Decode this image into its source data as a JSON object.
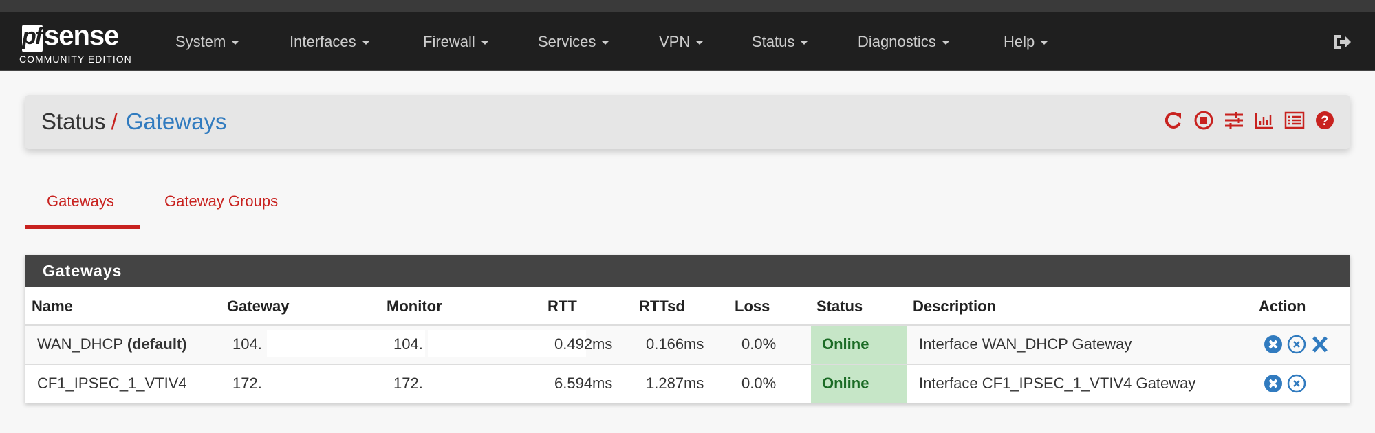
{
  "brand": {
    "logo_pf": "pf",
    "logo_sense": "sense",
    "edition": "COMMUNITY EDITION"
  },
  "nav": {
    "items": [
      {
        "label": "System"
      },
      {
        "label": "Interfaces"
      },
      {
        "label": "Firewall"
      },
      {
        "label": "Services"
      },
      {
        "label": "VPN"
      },
      {
        "label": "Status"
      },
      {
        "label": "Diagnostics"
      },
      {
        "label": "Help"
      }
    ],
    "logout_icon": "sign-out-icon"
  },
  "breadcrumb": {
    "parent": "Status",
    "separator": "/",
    "current": "Gateways",
    "icons": [
      "reload-icon",
      "stop-circle-icon",
      "sliders-icon",
      "bar-chart-icon",
      "list-icon",
      "help-icon"
    ]
  },
  "tabs": [
    {
      "label": "Gateways",
      "active": true
    },
    {
      "label": "Gateway Groups",
      "active": false
    }
  ],
  "panel": {
    "title": "Gateways",
    "columns": [
      "Name",
      "Gateway",
      "Monitor",
      "RTT",
      "RTTsd",
      "Loss",
      "Status",
      "Description",
      "Action"
    ],
    "rows": [
      {
        "name": "WAN_DHCP",
        "name_suffix": "(default)",
        "gateway": "104.",
        "monitor": "104.",
        "rtt": "0.492ms",
        "rttsd": "0.166ms",
        "loss": "0.0%",
        "status": "Online",
        "description": "Interface WAN_DHCP Gateway",
        "actions": [
          "mark-down-icon",
          "kill-states-icon",
          "delete-icon"
        ]
      },
      {
        "name": "CF1_IPSEC_1_VTIV4",
        "name_suffix": "",
        "gateway": "172.",
        "monitor": "172.",
        "rtt": "6.594ms",
        "rttsd": "1.287ms",
        "loss": "0.0%",
        "status": "Online",
        "description": "Interface CF1_IPSEC_1_VTIV4 Gateway",
        "actions": [
          "mark-down-icon",
          "kill-states-icon"
        ]
      }
    ]
  },
  "colors": {
    "accent": "#c8221f",
    "link": "#317bbf",
    "online_bg": "#c6e6c7",
    "online_text": "#1b6b25",
    "action": "#317bbf"
  }
}
